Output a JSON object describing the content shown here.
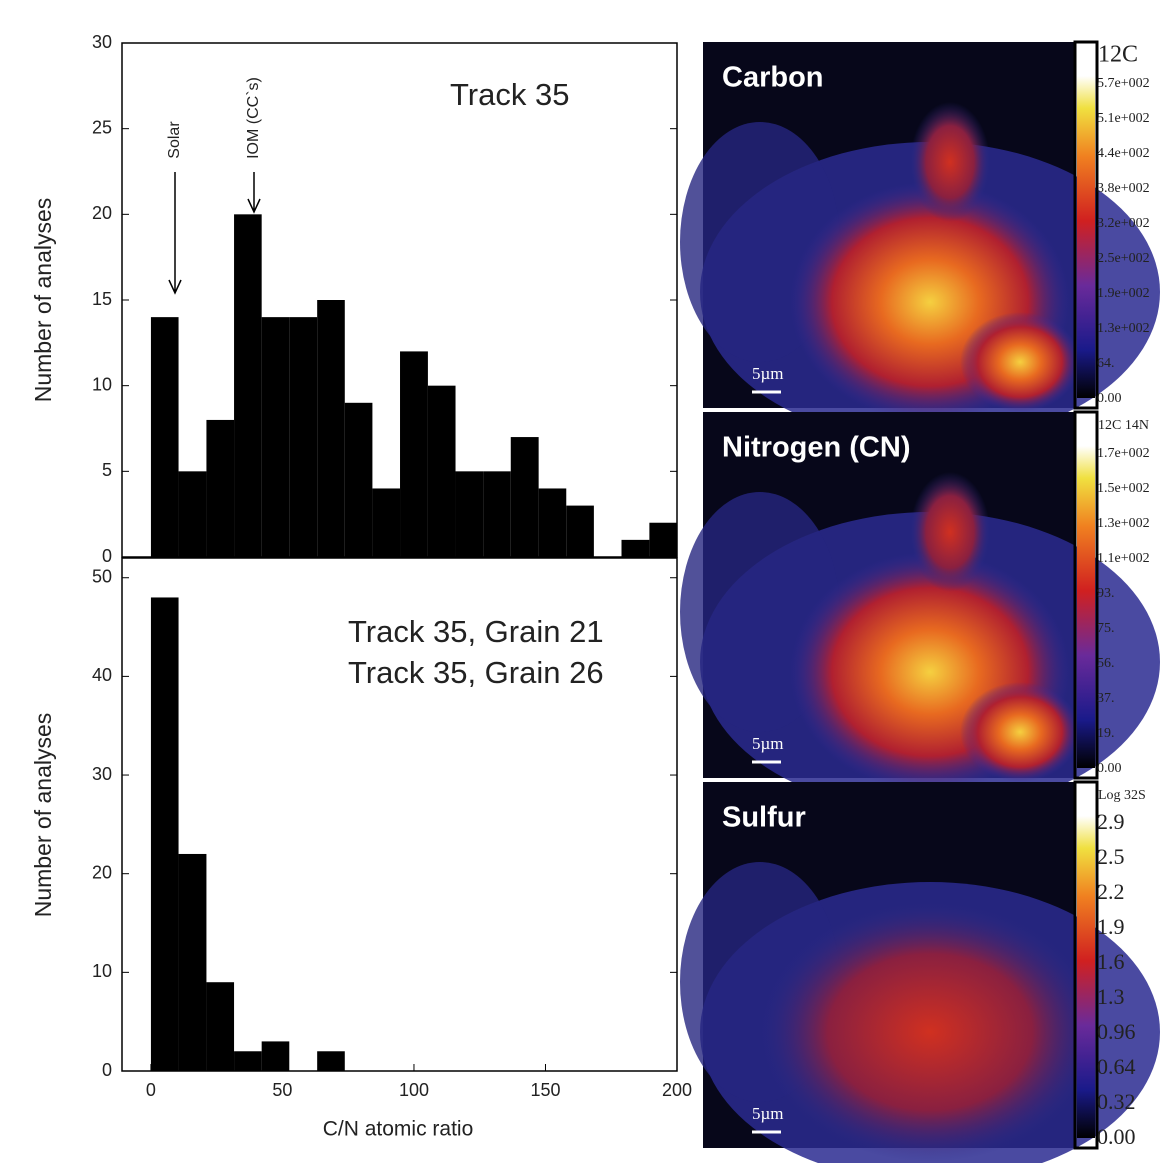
{
  "chart_data": [
    {
      "type": "histogram",
      "ylabel": "Number of analyses",
      "label": "Track 35",
      "annotations": [
        "Solar",
        "IOM (CC`s)"
      ],
      "bins": [
        0,
        10.5,
        21.1,
        31.6,
        42.1,
        52.6,
        63.2,
        73.7,
        84.2,
        94.7,
        105.3,
        115.8,
        126.3,
        136.8,
        147.4,
        157.9,
        168.4,
        178.9,
        189.5,
        200
      ],
      "values": [
        14,
        5,
        8,
        20,
        14,
        14,
        15,
        9,
        4,
        12,
        10,
        5,
        5,
        7,
        4,
        3,
        0,
        1,
        2
      ],
      "color": "#000000",
      "xlim": [
        -11,
        200
      ],
      "ylim": [
        0,
        30
      ],
      "yticks": [
        0,
        5,
        10,
        15,
        20,
        25,
        30
      ]
    },
    {
      "type": "histogram",
      "ylabel": "Number of analyses",
      "xlabel": "C/N atomic ratio",
      "labels": [
        "Track 35, Grain 21",
        "Track 35, Grain 26"
      ],
      "bins": [
        0,
        10.5,
        21.1,
        31.6,
        42.1,
        52.6,
        63.2,
        73.7,
        84.2,
        94.7,
        105.3,
        115.8,
        126.3,
        136.8,
        147.4,
        157.9,
        168.4,
        178.9,
        189.5,
        200
      ],
      "values": [
        48,
        22,
        9,
        2,
        3,
        0,
        2,
        0,
        0,
        0,
        0,
        0,
        0,
        0,
        0,
        0,
        0,
        0,
        0
      ],
      "color": "#000000",
      "xlim": [
        -11,
        200
      ],
      "ylim": [
        0,
        52
      ],
      "xticks": [
        0,
        50,
        100,
        150,
        200
      ],
      "yticks": [
        0,
        10,
        20,
        30,
        40,
        50
      ]
    }
  ],
  "images": [
    {
      "title": "Carbon",
      "colorbar_title": "12C",
      "scale_label": "5µm",
      "colorbar_labels": [
        "5.7e+002",
        "5.1e+002",
        "4.4e+002",
        "3.8e+002",
        "3.2e+002",
        "2.5e+002",
        "1.9e+002",
        "1.3e+002",
        "64.",
        "0.00"
      ]
    },
    {
      "title": "Nitrogen (CN)",
      "colorbar_title": "12C 14N",
      "scale_label": "5µm",
      "colorbar_labels": [
        "1.7e+002",
        "1.5e+002",
        "1.3e+002",
        "1.1e+002",
        "93.",
        "75.",
        "56.",
        "37.",
        "19.",
        "0.00"
      ]
    },
    {
      "title": "Sulfur",
      "colorbar_title": "Log 32S",
      "scale_label": "5µm",
      "colorbar_labels": [
        "2.9",
        "2.5",
        "2.2",
        "1.9",
        "1.6",
        "1.3",
        "0.96",
        "0.64",
        "0.32",
        "0.00"
      ]
    }
  ]
}
